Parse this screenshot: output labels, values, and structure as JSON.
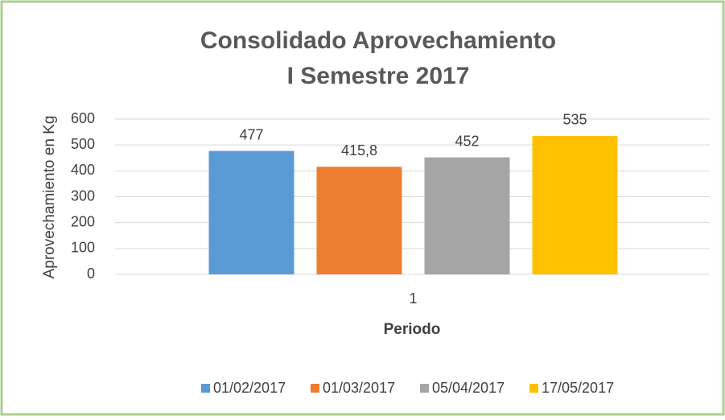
{
  "chart_data": {
    "type": "bar",
    "title": [
      "Consolidado Aprovechamiento",
      "I Semestre 2017"
    ],
    "x_label": "Periodo",
    "y_label": "Aprovechamiento en Kg",
    "categories": [
      "1"
    ],
    "series": [
      {
        "name": "01/02/2017",
        "color": "#5b9bd5",
        "values": [
          477
        ],
        "value_labels": [
          "477"
        ]
      },
      {
        "name": "01/03/2017",
        "color": "#ed7d31",
        "values": [
          415.8
        ],
        "value_labels": [
          "415,8"
        ]
      },
      {
        "name": "05/04/2017",
        "color": "#a5a5a5",
        "values": [
          452
        ],
        "value_labels": [
          "452"
        ]
      },
      {
        "name": "17/05/2017",
        "color": "#ffc000",
        "values": [
          535
        ],
        "value_labels": [
          "535"
        ]
      }
    ],
    "ylim": [
      0,
      600
    ],
    "yticks": [
      0,
      100,
      200,
      300,
      400,
      500,
      600
    ],
    "grid": true,
    "legend": "bottom"
  }
}
